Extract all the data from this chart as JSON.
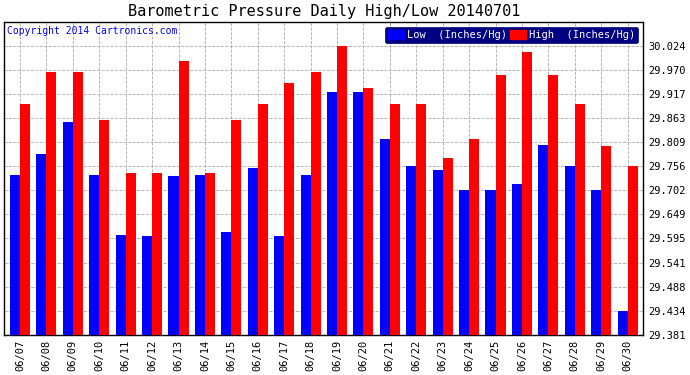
{
  "title": "Barometric Pressure Daily High/Low 20140701",
  "copyright": "Copyright 2014 Cartronics.com",
  "legend_low": "Low  (Inches/Hg)",
  "legend_high": "High  (Inches/Hg)",
  "dates": [
    "06/07",
    "06/08",
    "06/09",
    "06/10",
    "06/11",
    "06/12",
    "06/13",
    "06/14",
    "06/15",
    "06/16",
    "06/17",
    "06/18",
    "06/19",
    "06/20",
    "06/21",
    "06/22",
    "06/23",
    "06/24",
    "06/25",
    "06/26",
    "06/27",
    "06/28",
    "06/29",
    "06/30"
  ],
  "low_values": [
    29.737,
    29.782,
    29.854,
    29.737,
    29.602,
    29.6,
    29.733,
    29.737,
    29.609,
    29.752,
    29.6,
    29.737,
    29.921,
    29.921,
    29.816,
    29.756,
    29.748,
    29.703,
    29.703,
    29.716,
    29.803,
    29.756,
    29.703,
    29.434
  ],
  "high_values": [
    29.893,
    29.965,
    29.965,
    29.858,
    29.74,
    29.74,
    29.99,
    29.74,
    29.858,
    29.893,
    29.94,
    29.965,
    30.024,
    29.93,
    29.893,
    29.893,
    29.775,
    29.816,
    29.958,
    30.01,
    29.958,
    29.893,
    29.8,
    29.757
  ],
  "ylim_min": 29.381,
  "ylim_max": 30.077,
  "yticks": [
    29.381,
    29.434,
    29.488,
    29.541,
    29.595,
    29.649,
    29.702,
    29.756,
    29.809,
    29.863,
    29.917,
    29.97,
    30.024
  ],
  "bar_width": 0.38,
  "low_color": "#0000FF",
  "high_color": "#FF0000",
  "bg_color": "#FFFFFF",
  "grid_color": "#AAAAAA",
  "title_fontsize": 11,
  "tick_fontsize": 7.5,
  "legend_fontsize": 7.5,
  "copyright_fontsize": 7
}
